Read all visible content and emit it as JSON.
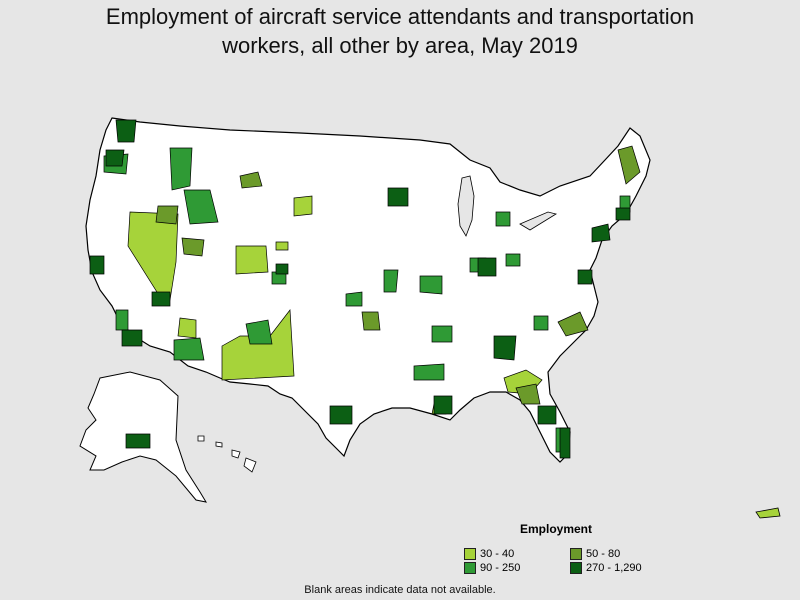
{
  "title_line1": "Employment of aircraft service attendants and transportation",
  "title_line2": "workers, all other by area, May 2019",
  "legend": {
    "title": "Employment",
    "items": [
      {
        "label": "30 - 40",
        "color": "#a6d33a"
      },
      {
        "label": "50 - 80",
        "color": "#6b9a2a"
      },
      {
        "label": "90 - 250",
        "color": "#2f9a35"
      },
      {
        "label": "270 - 1,290",
        "color": "#0c5f14"
      }
    ]
  },
  "note": "Blank areas indicate data not available."
}
